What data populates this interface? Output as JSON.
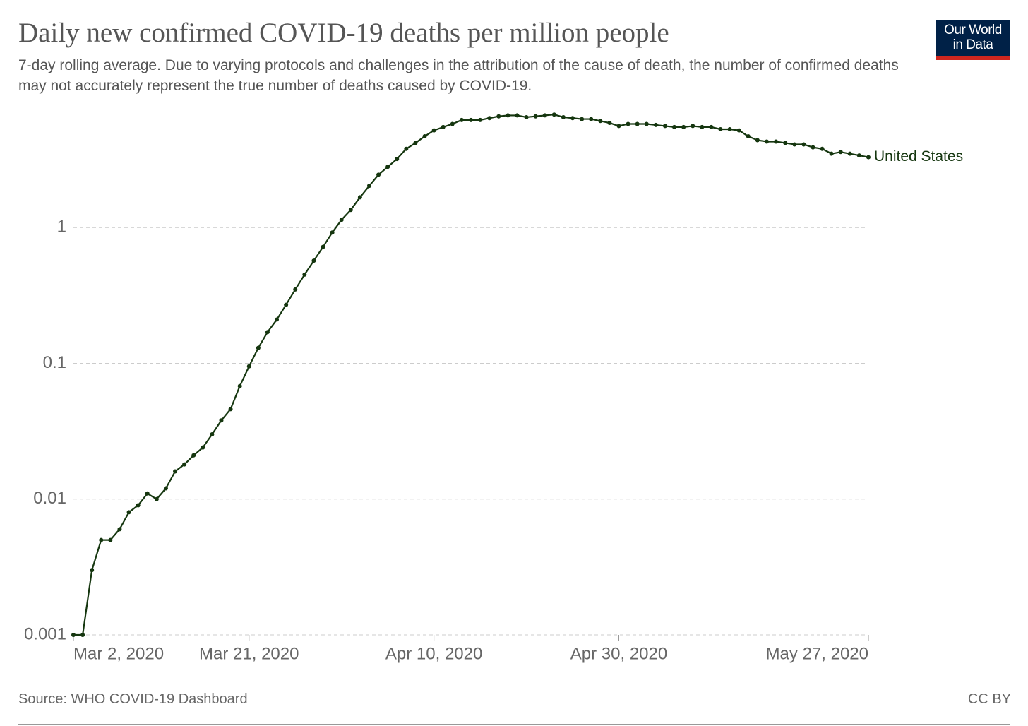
{
  "chart_data": {
    "type": "line",
    "title": "Daily new confirmed COVID-19 deaths per million people",
    "subtitle": "7-day rolling average. Due to varying protocols and challenges in the attribution of the cause of death, the number of confirmed deaths may not accurately represent the true number of deaths caused by COVID-19.",
    "source": "Source: WHO COVID-19 Dashboard",
    "license": "CC BY",
    "logo": [
      "Our World",
      "in Data"
    ],
    "log_scale": true,
    "grid": true,
    "ylim": [
      0.001,
      10
    ],
    "yticks": [
      0.001,
      0.01,
      0.1,
      1
    ],
    "xlim": [
      "2020-03-02",
      "2020-05-27"
    ],
    "xticks": [
      {
        "value": "2020-03-02",
        "label": "Mar 2, 2020"
      },
      {
        "value": "2020-03-21",
        "label": "Mar 21, 2020"
      },
      {
        "value": "2020-04-10",
        "label": "Apr 10, 2020"
      },
      {
        "value": "2020-04-30",
        "label": "Apr 30, 2020"
      },
      {
        "value": "2020-05-27",
        "label": "May 27, 2020"
      }
    ],
    "x": [
      "2020-03-02",
      "2020-03-03",
      "2020-03-04",
      "2020-03-05",
      "2020-03-06",
      "2020-03-07",
      "2020-03-08",
      "2020-03-09",
      "2020-03-10",
      "2020-03-11",
      "2020-03-12",
      "2020-03-13",
      "2020-03-14",
      "2020-03-15",
      "2020-03-16",
      "2020-03-17",
      "2020-03-18",
      "2020-03-19",
      "2020-03-20",
      "2020-03-21",
      "2020-03-22",
      "2020-03-23",
      "2020-03-24",
      "2020-03-25",
      "2020-03-26",
      "2020-03-27",
      "2020-03-28",
      "2020-03-29",
      "2020-03-30",
      "2020-03-31",
      "2020-04-01",
      "2020-04-02",
      "2020-04-03",
      "2020-04-04",
      "2020-04-05",
      "2020-04-06",
      "2020-04-07",
      "2020-04-08",
      "2020-04-09",
      "2020-04-10",
      "2020-04-11",
      "2020-04-12",
      "2020-04-13",
      "2020-04-14",
      "2020-04-15",
      "2020-04-16",
      "2020-04-17",
      "2020-04-18",
      "2020-04-19",
      "2020-04-20",
      "2020-04-21",
      "2020-04-22",
      "2020-04-23",
      "2020-04-24",
      "2020-04-25",
      "2020-04-26",
      "2020-04-27",
      "2020-04-28",
      "2020-04-29",
      "2020-04-30",
      "2020-05-01",
      "2020-05-02",
      "2020-05-03",
      "2020-05-04",
      "2020-05-05",
      "2020-05-06",
      "2020-05-07",
      "2020-05-08",
      "2020-05-09",
      "2020-05-10",
      "2020-05-11",
      "2020-05-12",
      "2020-05-13",
      "2020-05-14",
      "2020-05-15",
      "2020-05-16",
      "2020-05-17",
      "2020-05-18",
      "2020-05-19",
      "2020-05-20",
      "2020-05-21",
      "2020-05-22",
      "2020-05-23",
      "2020-05-24",
      "2020-05-25",
      "2020-05-26",
      "2020-05-27"
    ],
    "series": [
      {
        "name": "United States",
        "color": "#15360f",
        "values": [
          0.001,
          0.001,
          0.003,
          0.005,
          0.005,
          0.006,
          0.008,
          0.009,
          0.011,
          0.01,
          0.012,
          0.016,
          0.018,
          0.021,
          0.024,
          0.03,
          0.038,
          0.046,
          0.068,
          0.095,
          0.13,
          0.17,
          0.21,
          0.27,
          0.35,
          0.45,
          0.57,
          0.72,
          0.92,
          1.14,
          1.35,
          1.67,
          2.03,
          2.45,
          2.8,
          3.2,
          3.8,
          4.2,
          4.7,
          5.2,
          5.5,
          5.8,
          6.2,
          6.2,
          6.2,
          6.4,
          6.6,
          6.7,
          6.7,
          6.5,
          6.6,
          6.7,
          6.8,
          6.5,
          6.4,
          6.3,
          6.3,
          6.1,
          5.9,
          5.6,
          5.8,
          5.8,
          5.8,
          5.7,
          5.6,
          5.5,
          5.5,
          5.6,
          5.5,
          5.5,
          5.3,
          5.3,
          5.2,
          4.7,
          4.4,
          4.3,
          4.3,
          4.2,
          4.1,
          4.1,
          3.9,
          3.8,
          3.5,
          3.6,
          3.5,
          3.4,
          3.3
        ]
      }
    ]
  }
}
